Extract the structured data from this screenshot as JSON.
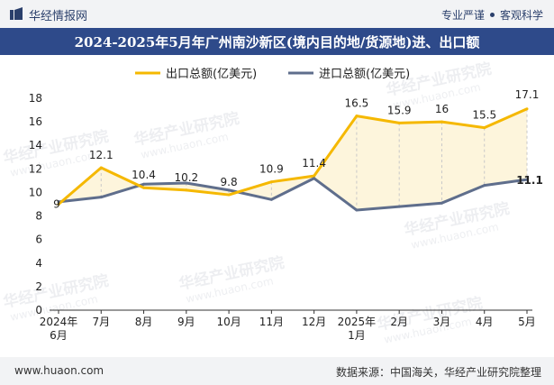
{
  "header": {
    "brand": "华经情报网",
    "tag1": "专业严谨",
    "tag2": "客观科学"
  },
  "footer": {
    "website": "www.huaon.com",
    "source": "数据来源：中国海关，华经产业研究院整理"
  },
  "watermark": "华经产业研究院",
  "watermark_url": "www.huaon.com",
  "colors": {
    "export": "#f5b800",
    "import": "#5f6e8c",
    "fill": "#fdf5dc",
    "title_bg": "#2e4a8a"
  },
  "chart_data": {
    "type": "line",
    "title": "2024-2025年5月年广州南沙新区(境内目的地/货源地)进、出口额",
    "categories": [
      "2024年\n6月",
      "7月",
      "8月",
      "9月",
      "10月",
      "11月",
      "12月",
      "2025年\n1月",
      "2月",
      "3月",
      "4月",
      "5月"
    ],
    "series": [
      {
        "name": "出口总额(亿美元)",
        "values": [
          9,
          12.1,
          10.4,
          10.2,
          9.8,
          10.9,
          11.4,
          16.5,
          15.9,
          16,
          15.5,
          17.1
        ],
        "labels_shown": true
      },
      {
        "name": "进口总额(亿美元)",
        "values": [
          9.2,
          9.6,
          10.7,
          10.8,
          10.2,
          9.4,
          11.2,
          8.5,
          8.8,
          9.1,
          10.6,
          11.1
        ],
        "labels_shown": false,
        "last_label": "11.1"
      }
    ],
    "ylim": [
      0,
      18
    ],
    "yticks": [
      0,
      2,
      4,
      6,
      8,
      10,
      12,
      14,
      16,
      18
    ],
    "grid": false,
    "legend": "top-left"
  }
}
